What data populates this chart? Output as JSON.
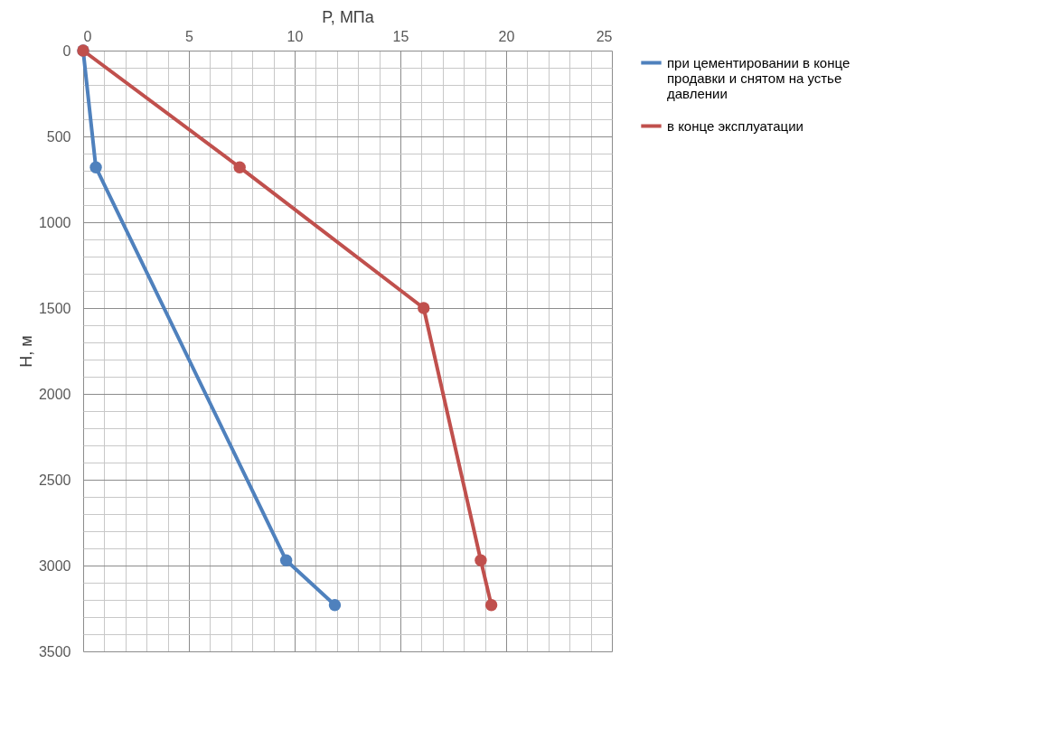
{
  "chart_data": {
    "type": "line",
    "xlabel": "P, МПа",
    "ylabel": "H, м",
    "xlim": [
      0,
      25
    ],
    "xticks": [
      0,
      {
        "value": 1,
        "label": null
      },
      {
        "value": 2,
        "label": null
      },
      {
        "value": 3,
        "label": null
      },
      {
        "value": 4,
        "label": null
      },
      5,
      {
        "value": 6,
        "label": null
      },
      {
        "value": 7,
        "label": null
      },
      {
        "value": 8,
        "label": null
      },
      {
        "value": 9,
        "label": null
      },
      10,
      {
        "value": 11,
        "label": null
      },
      {
        "value": 12,
        "label": null
      },
      {
        "value": 13,
        "label": null
      },
      {
        "value": 14,
        "label": null
      },
      15,
      {
        "value": 16,
        "label": null
      },
      {
        "value": 17,
        "label": null
      },
      {
        "value": 18,
        "label": null
      },
      {
        "value": 19,
        "label": null
      },
      20,
      {
        "value": 21,
        "label": null
      },
      {
        "value": 22,
        "label": null
      },
      {
        "value": 23,
        "label": null
      },
      {
        "value": 24,
        "label": null
      },
      25
    ],
    "ylim": [
      3500,
      0
    ],
    "yticks": [
      0,
      {
        "value": 100,
        "label": null
      },
      {
        "value": 200,
        "label": null
      },
      {
        "value": 300,
        "label": null
      },
      {
        "value": 400,
        "label": null
      },
      500,
      {
        "value": 600,
        "label": null
      },
      {
        "value": 700,
        "label": null
      },
      {
        "value": 800,
        "label": null
      },
      {
        "value": 900,
        "label": null
      },
      1000,
      {
        "value": 1100,
        "label": null
      },
      {
        "value": 1200,
        "label": null
      },
      {
        "value": 1300,
        "label": null
      },
      {
        "value": 1400,
        "label": null
      },
      1500,
      {
        "value": 1600,
        "label": null
      },
      {
        "value": 1700,
        "label": null
      },
      {
        "value": 1800,
        "label": null
      },
      {
        "value": 1900,
        "label": null
      },
      2000,
      {
        "value": 2100,
        "label": null
      },
      {
        "value": 2200,
        "label": null
      },
      {
        "value": 2300,
        "label": null
      },
      {
        "value": 2400,
        "label": null
      },
      2500,
      {
        "value": 2600,
        "label": null
      },
      {
        "value": 2700,
        "label": null
      },
      {
        "value": 2800,
        "label": null
      },
      {
        "value": 2900,
        "label": null
      },
      3000,
      {
        "value": 3100,
        "label": null
      },
      {
        "value": 3200,
        "label": null
      },
      {
        "value": 3300,
        "label": null
      },
      {
        "value": 3400,
        "label": null
      },
      3500
    ],
    "grid": true,
    "legend": "right",
    "marker": "circle",
    "line_style": "solid",
    "series": [
      {
        "name": "при цементировании в конце продавки и снятом на устье давлении",
        "color": "#4f81bd",
        "x": [
          0,
          0.6,
          9.6,
          11.9
        ],
        "values": [
          0,
          680,
          2970,
          3230
        ]
      },
      {
        "name": "в конце эксплуатации",
        "color": "#c0504d",
        "x": [
          0,
          7.4,
          16.1,
          18.8,
          19.3
        ],
        "values": [
          0,
          680,
          1500,
          2970,
          3230
        ]
      }
    ]
  }
}
